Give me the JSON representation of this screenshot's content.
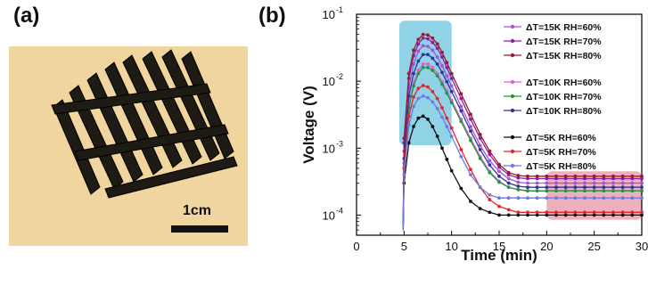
{
  "panels": {
    "a_label": "(a)",
    "b_label": "(b)"
  },
  "photo": {
    "scale_bar_label": "1cm",
    "background_color": "#f1d6a2",
    "object_color": "#1c1a14"
  },
  "chart_data": {
    "type": "line",
    "title": "",
    "xlabel": "Time (min)",
    "ylabel": "Voltage (V)",
    "xlim": [
      0,
      30
    ],
    "ylim": [
      5e-05,
      0.1
    ],
    "yscale": "log",
    "x_ticks": [
      0,
      5,
      10,
      15,
      20,
      25,
      30
    ],
    "y_ticks": [
      {
        "value": 0.0001,
        "label": "10",
        "exp": "-4"
      },
      {
        "value": 0.001,
        "label": "10",
        "exp": "-3"
      },
      {
        "value": 0.01,
        "label": "10",
        "exp": "-2"
      },
      {
        "value": 0.1,
        "label": "10",
        "exp": "-1"
      }
    ],
    "legend_position": "top-right",
    "highlight_regions": [
      {
        "x": [
          4.5,
          10
        ],
        "y": [
          0.0011,
          0.08
        ],
        "color": "#7ccbe3"
      },
      {
        "x": [
          20,
          30
        ],
        "y": [
          8.5e-05,
          0.00045
        ],
        "color": "#e9a3b0"
      }
    ],
    "x": [
      4.9,
      5.0,
      5.5,
      6.0,
      6.5,
      7.0,
      7.5,
      8.0,
      8.5,
      9.0,
      9.5,
      10.0,
      11.0,
      12.0,
      13.0,
      14.0,
      15.0,
      16.0,
      17.0,
      18.0,
      19.0,
      20.0,
      21.0,
      22.0,
      23.0,
      24.0,
      25.0,
      26.0,
      27.0,
      28.0,
      29.0,
      30.0
    ],
    "series": [
      {
        "name": "ΔT=15K RH=60%",
        "color": "#a653d3",
        "values": [
          6e-05,
          0.0009,
          0.008,
          0.018,
          0.028,
          0.034,
          0.033,
          0.029,
          0.023,
          0.017,
          0.012,
          0.0085,
          0.0042,
          0.0021,
          0.0011,
          0.00065,
          0.00045,
          0.00035,
          0.00031,
          0.0003,
          0.0003,
          0.0003,
          0.0003,
          0.0003,
          0.0003,
          0.0003,
          0.0003,
          0.0003,
          0.0003,
          0.0003,
          0.0003,
          0.0003
        ]
      },
      {
        "name": "ΔT=15K RH=70%",
        "color": "#8a1fa5",
        "values": [
          6e-05,
          0.0012,
          0.011,
          0.024,
          0.036,
          0.044,
          0.043,
          0.038,
          0.031,
          0.023,
          0.016,
          0.011,
          0.0055,
          0.0027,
          0.0014,
          0.0008,
          0.00052,
          0.0004,
          0.00036,
          0.00035,
          0.00035,
          0.00035,
          0.00035,
          0.00035,
          0.00035,
          0.00035,
          0.00035,
          0.00035,
          0.00035,
          0.00035,
          0.00035,
          0.00035
        ]
      },
      {
        "name": "ΔT=15K RH=80%",
        "color": "#9b1b2a",
        "values": [
          6e-05,
          0.0014,
          0.013,
          0.029,
          0.042,
          0.05,
          0.049,
          0.044,
          0.036,
          0.027,
          0.019,
          0.013,
          0.0065,
          0.0032,
          0.0016,
          0.0009,
          0.00057,
          0.00043,
          0.00039,
          0.00038,
          0.00038,
          0.00038,
          0.00038,
          0.00038,
          0.00038,
          0.00038,
          0.00038,
          0.00038,
          0.00038,
          0.00038,
          0.00038,
          0.00038
        ]
      },
      {
        "name": "ΔT=10K RH=60%",
        "color": "#e25ed9",
        "values": [
          6e-05,
          0.0006,
          0.0045,
          0.0095,
          0.0145,
          0.018,
          0.018,
          0.016,
          0.013,
          0.0098,
          0.0072,
          0.0052,
          0.0027,
          0.0014,
          0.00075,
          0.00045,
          0.00032,
          0.00026,
          0.00024,
          0.00023,
          0.00023,
          0.00023,
          0.00023,
          0.00023,
          0.00023,
          0.00023,
          0.00023,
          0.00023,
          0.00023,
          0.00023,
          0.00023,
          0.00023
        ]
      },
      {
        "name": "ΔT=10K RH=70%",
        "color": "#1e9a3a",
        "values": [
          6e-05,
          0.0005,
          0.004,
          0.0085,
          0.013,
          0.016,
          0.016,
          0.0145,
          0.012,
          0.009,
          0.0066,
          0.0048,
          0.0025,
          0.0013,
          0.0007,
          0.00043,
          0.00031,
          0.00026,
          0.00024,
          0.00023,
          0.00023,
          0.00023,
          0.00023,
          0.00023,
          0.00023,
          0.00023,
          0.00023,
          0.00023,
          0.00023,
          0.00023,
          0.00023,
          0.00023
        ]
      },
      {
        "name": "ΔT=10K RH=80%",
        "color": "#35339a",
        "values": [
          6e-05,
          0.0007,
          0.006,
          0.013,
          0.02,
          0.025,
          0.025,
          0.022,
          0.018,
          0.0135,
          0.0098,
          0.007,
          0.0036,
          0.0018,
          0.00095,
          0.00056,
          0.00038,
          0.0003,
          0.00027,
          0.00026,
          0.00026,
          0.00026,
          0.00026,
          0.00026,
          0.00026,
          0.00026,
          0.00026,
          0.00026,
          0.00026,
          0.00026,
          0.00026,
          0.00026
        ]
      },
      {
        "name": "ΔT=5K RH=60%",
        "color": "#111111",
        "values": [
          6e-05,
          0.0003,
          0.0012,
          0.0021,
          0.0028,
          0.003,
          0.0027,
          0.0021,
          0.0015,
          0.001,
          0.00068,
          0.00046,
          0.00025,
          0.00016,
          0.000125,
          0.00011,
          0.0001,
          0.0001,
          0.0001,
          0.0001,
          0.0001,
          0.0001,
          0.0001,
          0.0001,
          0.0001,
          0.0001,
          0.0001,
          0.0001,
          0.0001,
          0.0001,
          0.0001,
          0.0001
        ]
      },
      {
        "name": "ΔT=5K RH=70%",
        "color": "#e0272c",
        "values": [
          6e-05,
          0.0005,
          0.003,
          0.0058,
          0.0078,
          0.0086,
          0.0082,
          0.007,
          0.0055,
          0.004,
          0.0028,
          0.002,
          0.00095,
          0.00048,
          0.00026,
          0.00017,
          0.000135,
          0.00012,
          0.00011,
          0.00011,
          0.00011,
          0.00011,
          0.00011,
          0.00011,
          0.00011,
          0.00011,
          0.00011,
          0.00011,
          0.00011,
          0.00011,
          0.00011,
          0.00011
        ]
      },
      {
        "name": "ΔT=5K RH=80%",
        "color": "#6f7ae0",
        "values": [
          6e-05,
          0.0004,
          0.0022,
          0.0042,
          0.0055,
          0.006,
          0.0057,
          0.0049,
          0.0039,
          0.0029,
          0.0021,
          0.0015,
          0.00075,
          0.0004,
          0.00026,
          0.0002,
          0.00018,
          0.00018,
          0.00018,
          0.00018,
          0.00018,
          0.00018,
          0.00018,
          0.00018,
          0.00018,
          0.00018,
          0.00018,
          0.00018,
          0.00018,
          0.00018,
          0.00018,
          0.00018
        ]
      }
    ],
    "legend_groups": [
      [
        0,
        1,
        2
      ],
      [
        3,
        4,
        5
      ],
      [
        6,
        7,
        8
      ]
    ]
  }
}
